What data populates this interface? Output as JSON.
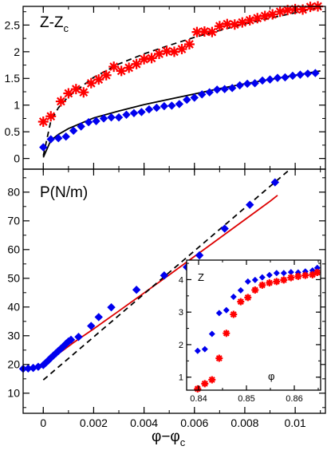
{
  "chart_data": [
    {
      "type": "scatter",
      "panel_label": "Z-Z",
      "panel_label_sub": "c",
      "xlim": [
        -0.0008,
        0.0112
      ],
      "ylim": [
        -0.2,
        2.85
      ],
      "yticks": [
        0,
        0.5,
        1,
        1.5,
        2,
        2.5
      ],
      "ytick_labels": [
        "0",
        "0.5",
        "1",
        "1.5",
        "2",
        "2.5"
      ],
      "series": [
        {
          "marker": "star",
          "color": "#ff0000",
          "x": [
            0.0,
            0.0003,
            0.0007,
            0.001,
            0.0013,
            0.0016,
            0.0019,
            0.0022,
            0.0025,
            0.0028,
            0.0031,
            0.0034,
            0.0037,
            0.004,
            0.0043,
            0.0046,
            0.0049,
            0.0052,
            0.0055,
            0.0058,
            0.0061,
            0.0064,
            0.0067,
            0.007,
            0.0073,
            0.0076,
            0.0079,
            0.0082,
            0.0085,
            0.0088,
            0.0091,
            0.0094,
            0.0097,
            0.01,
            0.0103,
            0.0106,
            0.0109
          ],
          "y": [
            0.69,
            0.79,
            1.07,
            1.22,
            1.3,
            1.24,
            1.41,
            1.48,
            1.56,
            1.72,
            1.64,
            1.7,
            1.77,
            1.86,
            1.88,
            1.96,
            2.01,
            2.0,
            2.05,
            2.14,
            2.37,
            2.38,
            2.37,
            2.48,
            2.52,
            2.51,
            2.55,
            2.59,
            2.63,
            2.67,
            2.7,
            2.75,
            2.78,
            2.8,
            2.79,
            2.84,
            2.85
          ]
        },
        {
          "marker": "diamond",
          "color": "#0000ee",
          "x": [
            0.0,
            0.0003,
            0.0006,
            0.0009,
            0.0012,
            0.0015,
            0.0018,
            0.0021,
            0.0024,
            0.0027,
            0.003,
            0.0033,
            0.0036,
            0.0039,
            0.0042,
            0.0045,
            0.0048,
            0.0051,
            0.0054,
            0.0057,
            0.006,
            0.0063,
            0.0066,
            0.0069,
            0.0072,
            0.0075,
            0.0078,
            0.0081,
            0.0084,
            0.0087,
            0.009,
            0.0093,
            0.0096,
            0.0099,
            0.0102,
            0.0105,
            0.0108
          ],
          "y": [
            0.21,
            0.36,
            0.38,
            0.41,
            0.52,
            0.6,
            0.68,
            0.7,
            0.75,
            0.77,
            0.77,
            0.82,
            0.85,
            0.87,
            0.92,
            0.95,
            0.98,
            0.99,
            1.02,
            1.1,
            1.14,
            1.2,
            1.24,
            1.29,
            1.3,
            1.32,
            1.37,
            1.4,
            1.41,
            1.46,
            1.48,
            1.51,
            1.52,
            1.55,
            1.57,
            1.59,
            1.6
          ]
        }
      ],
      "fit_lines": [
        {
          "style": "dashed",
          "color": "#000000",
          "x": [
            0.0,
            0.0003,
            0.0006,
            0.001,
            0.002,
            0.003,
            0.004,
            0.005,
            0.006,
            0.007,
            0.008,
            0.009,
            0.01,
            0.011
          ],
          "y": [
            0.05,
            0.7,
            0.95,
            1.16,
            1.52,
            1.77,
            1.96,
            2.12,
            2.27,
            2.4,
            2.52,
            2.63,
            2.73,
            2.83
          ]
        },
        {
          "style": "solid",
          "color": "#000000",
          "x": [
            0.0,
            0.0003,
            0.0006,
            0.001,
            0.002,
            0.003,
            0.004,
            0.005,
            0.006,
            0.007,
            0.008,
            0.009,
            0.01,
            0.011
          ],
          "y": [
            0.02,
            0.34,
            0.45,
            0.56,
            0.76,
            0.89,
            1.01,
            1.11,
            1.21,
            1.31,
            1.4,
            1.48,
            1.56,
            1.64
          ]
        }
      ]
    },
    {
      "type": "scatter",
      "panel_label": "P(N/m)",
      "xlabel": "φ−φ",
      "xlabel_sub": "c",
      "xlim": [
        -0.0008,
        0.0112
      ],
      "ylim": [
        3,
        88
      ],
      "xticks": [
        0,
        0.002,
        0.004,
        0.006,
        0.008,
        0.01
      ],
      "xtick_labels": [
        "0",
        "0.002",
        "0.004",
        "0.006",
        "0.008",
        "0.01"
      ],
      "yticks": [
        10,
        20,
        30,
        40,
        50,
        60,
        70,
        80
      ],
      "ytick_labels": [
        "10",
        "20",
        "30",
        "40",
        "50",
        "60",
        "70",
        "80"
      ],
      "series": [
        {
          "marker": "diamond",
          "color": "#0000ee",
          "x": [
            -0.0008,
            -0.0006,
            -0.0004,
            -0.0002,
            0.0,
            0.0001,
            0.0002,
            0.0003,
            0.0004,
            0.0005,
            0.0006,
            0.0007,
            0.0008,
            0.0009,
            0.001,
            0.0011,
            0.0014,
            0.0019,
            0.0022,
            0.0027,
            0.0037,
            0.0048,
            0.0057,
            0.0062,
            0.0072,
            0.0082,
            0.0092
          ],
          "y": [
            18.5,
            18.6,
            18.8,
            19.2,
            19.8,
            20.6,
            21.4,
            22.3,
            23.1,
            23.9,
            24.7,
            25.5,
            26.3,
            27.2,
            28.0,
            28.6,
            29.6,
            33.4,
            36.5,
            39.9,
            46.0,
            51.0,
            53.9,
            58.0,
            67.3,
            75.6,
            83.4
          ]
        }
      ],
      "fit_lines": [
        {
          "style": "solid",
          "color": "#dd0000",
          "x": [
            -0.0008,
            -0.0004,
            0.0,
            0.0004,
            0.0008,
            0.0012,
            0.002,
            0.003,
            0.004,
            0.005,
            0.006,
            0.007,
            0.008,
            0.009,
            0.0093
          ],
          "y": [
            18.3,
            18.9,
            20.3,
            22.5,
            25.0,
            27.6,
            32.4,
            38.6,
            44.9,
            51.2,
            57.6,
            64.0,
            70.4,
            76.8,
            78.9
          ]
        },
        {
          "style": "dashed",
          "color": "#000000",
          "x": [
            0.0,
            0.0098
          ],
          "y": [
            14.6,
            88.0
          ]
        }
      ]
    },
    {
      "type": "scatter",
      "inset": true,
      "panel_label": "Z",
      "xlabel": "φ",
      "xlim": [
        0.8375,
        0.8655
      ],
      "ylim": [
        0.6,
        4.6
      ],
      "xticks": [
        0.84,
        0.85,
        0.86
      ],
      "xtick_labels": [
        "0.84",
        "0.85",
        "0.86"
      ],
      "yticks": [
        1,
        2,
        3,
        4
      ],
      "ytick_labels": [
        "1",
        "2",
        "3",
        "4"
      ],
      "series": [
        {
          "marker": "diamond",
          "color": "#0000ee",
          "x": [
            0.8398,
            0.8413,
            0.8428,
            0.8443,
            0.8458,
            0.8473,
            0.8488,
            0.8503,
            0.8518,
            0.8533,
            0.8548,
            0.8563,
            0.8578,
            0.8593,
            0.8608,
            0.8623,
            0.8638,
            0.8648
          ],
          "y": [
            1.81,
            1.86,
            2.33,
            2.97,
            3.06,
            3.47,
            3.67,
            3.94,
            3.99,
            4.07,
            4.14,
            4.2,
            4.2,
            4.23,
            4.22,
            4.25,
            4.28,
            4.36
          ]
        },
        {
          "marker": "star",
          "color": "#ff0000",
          "x": [
            0.8398,
            0.8413,
            0.8428,
            0.8443,
            0.8458,
            0.8473,
            0.8488,
            0.8503,
            0.8518,
            0.8533,
            0.8548,
            0.8563,
            0.8578,
            0.8593,
            0.8608,
            0.8623,
            0.8638,
            0.8648
          ],
          "y": [
            0.64,
            0.8,
            0.92,
            1.58,
            2.35,
            2.93,
            3.32,
            3.45,
            3.68,
            3.83,
            3.9,
            3.94,
            3.99,
            4.06,
            4.1,
            4.13,
            4.15,
            4.22
          ]
        }
      ]
    }
  ]
}
